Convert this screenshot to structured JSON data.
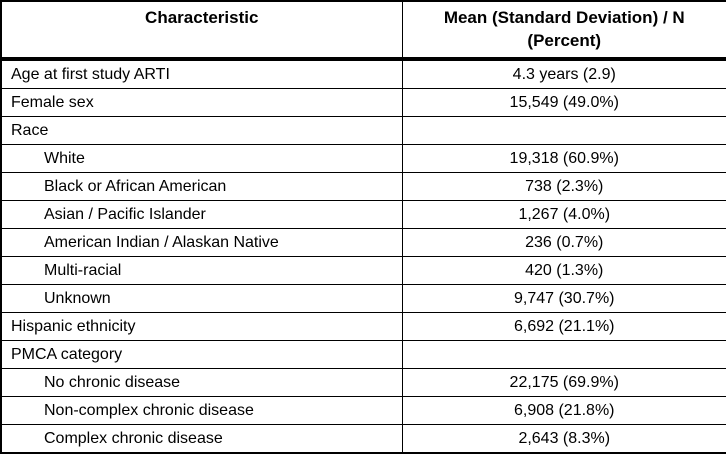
{
  "colors": {
    "border": "#000000",
    "text": "#000000",
    "background": "#ffffff"
  },
  "table": {
    "header": {
      "characteristic": "Characteristic",
      "value_line1": "Mean (Standard Deviation) / N",
      "value_line2": "(Percent)"
    },
    "rows": [
      {
        "label": "Age at first study ARTI",
        "value": "4.3 years (2.9)",
        "indent": false
      },
      {
        "label": "Female sex",
        "value": "15,549 (49.0%)",
        "indent": false
      },
      {
        "label": "Race",
        "value": "",
        "indent": false
      },
      {
        "label": "White",
        "value": "19,318 (60.9%)",
        "indent": true
      },
      {
        "label": "Black or African American",
        "value": "738 (2.3%)",
        "indent": true
      },
      {
        "label": "Asian / Pacific Islander",
        "value": "1,267 (4.0%)",
        "indent": true
      },
      {
        "label": "American Indian / Alaskan Native",
        "value": "236 (0.7%)",
        "indent": true
      },
      {
        "label": "Multi-racial",
        "value": "420 (1.3%)",
        "indent": true
      },
      {
        "label": "Unknown",
        "value": "9,747 (30.7%)",
        "indent": true
      },
      {
        "label": "Hispanic ethnicity",
        "value": "6,692 (21.1%)",
        "indent": false
      },
      {
        "label": "PMCA category",
        "value": "",
        "indent": false
      },
      {
        "label": "No chronic disease",
        "value": "22,175 (69.9%)",
        "indent": true
      },
      {
        "label": "Non-complex chronic disease",
        "value": "6,908 (21.8%)",
        "indent": true
      },
      {
        "label": "Complex chronic disease",
        "value": "2,643 (8.3%)",
        "indent": true
      }
    ]
  },
  "chart_data": {
    "type": "table",
    "title": "",
    "columns": [
      "Characteristic",
      "Mean (Standard Deviation) / N (Percent)"
    ],
    "rows": [
      [
        "Age at first study ARTI",
        "4.3 years (2.9)"
      ],
      [
        "Female sex",
        "15,549 (49.0%)"
      ],
      [
        "Race",
        ""
      ],
      [
        "White",
        "19,318 (60.9%)"
      ],
      [
        "Black or African American",
        "738 (2.3%)"
      ],
      [
        "Asian / Pacific Islander",
        "1,267 (4.0%)"
      ],
      [
        "American Indian / Alaskan Native",
        "236 (0.7%)"
      ],
      [
        "Multi-racial",
        "420 (1.3%)"
      ],
      [
        "Unknown",
        "9,747 (30.7%)"
      ],
      [
        "Hispanic ethnicity",
        "6,692 (21.1%)"
      ],
      [
        "PMCA category",
        ""
      ],
      [
        "No chronic disease",
        "22,175 (69.9%)"
      ],
      [
        "Non-complex chronic disease",
        "6,908 (21.8%)"
      ],
      [
        "Complex chronic disease",
        "2,643 (8.3%)"
      ]
    ]
  }
}
